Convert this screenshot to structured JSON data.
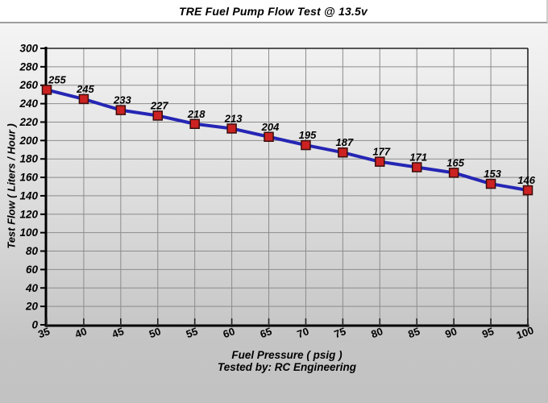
{
  "window": {
    "title": "TRE Fuel Pump Flow Test @ 13.5v"
  },
  "chart_data": {
    "type": "line",
    "title": "TRE Fuel Pump Flow Test @ 13.5v",
    "xlabel": "Fuel Pressure ( psig )",
    "ylabel": "Test Flow ( Liters / Hour )",
    "footer": "Tested by: RC Engineering",
    "x": [
      35,
      40,
      45,
      50,
      55,
      60,
      65,
      70,
      75,
      80,
      85,
      90,
      95,
      100
    ],
    "series": [
      {
        "name": "Test Flow",
        "values": [
          255,
          245,
          233,
          227,
          218,
          213,
          204,
          195,
          187,
          177,
          171,
          165,
          153,
          146
        ]
      }
    ],
    "data_labels": [
      "255",
      "245",
      "233",
      "227",
      "218",
      "213",
      "204",
      "195",
      "187",
      "177",
      "171",
      "165",
      "153",
      "146"
    ],
    "x_ticks": [
      35,
      40,
      45,
      50,
      55,
      60,
      65,
      70,
      75,
      80,
      85,
      90,
      95,
      100
    ],
    "y_ticks": [
      0,
      20,
      40,
      60,
      80,
      100,
      120,
      140,
      160,
      180,
      200,
      220,
      240,
      260,
      280,
      300
    ],
    "xlim": [
      35,
      100
    ],
    "ylim": [
      0,
      300
    ],
    "grid": true,
    "legend": false,
    "colors": {
      "line": "#2526b4",
      "marker_fill": "#cc2222",
      "marker_edge": "#3a0d0d",
      "grid": "#8c8c8c",
      "axis": "#000000",
      "plot_border": "#222222",
      "text": "#000000",
      "titlebar_bg": "#ffffff"
    }
  }
}
